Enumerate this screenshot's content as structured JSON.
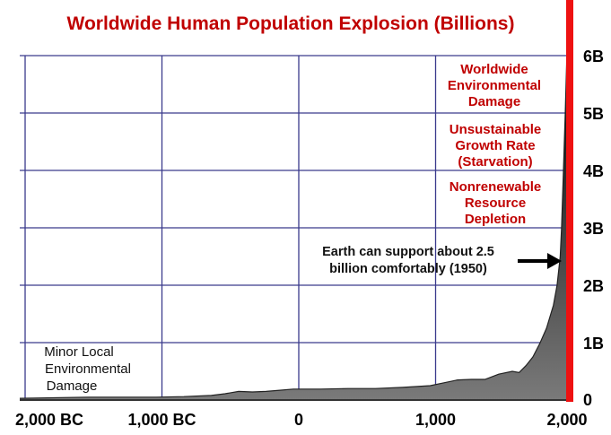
{
  "chart_data": {
    "type": "area",
    "title": "Worldwide Human Population Explosion (Billions)",
    "x_ticks": [
      {
        "value": -2000,
        "label": "2,000 BC"
      },
      {
        "value": -1000,
        "label": "1,000 BC"
      },
      {
        "value": 0,
        "label": "0"
      },
      {
        "value": 1000,
        "label": "1,000"
      },
      {
        "value": 2000,
        "label": "2,000"
      }
    ],
    "y_ticks": [
      {
        "value": 0,
        "label": "0"
      },
      {
        "value": 1,
        "label": "1B"
      },
      {
        "value": 2,
        "label": "2B"
      },
      {
        "value": 3,
        "label": "3B"
      },
      {
        "value": 4,
        "label": "4B"
      },
      {
        "value": 5,
        "label": "5B"
      },
      {
        "value": 6,
        "label": "6B"
      }
    ],
    "xlim": [
      -2000,
      2000
    ],
    "ylim": [
      0,
      6
    ],
    "grid": true,
    "x": [
      -2000,
      -1500,
      -1000,
      -800,
      -600,
      -500,
      -400,
      -300,
      -200,
      -100,
      0,
      200,
      400,
      600,
      800,
      1000,
      1100,
      1200,
      1300,
      1400,
      1500,
      1600,
      1650,
      1700,
      1750,
      1800,
      1850,
      1900,
      1927,
      1950,
      1960,
      1974,
      1987,
      1999,
      2000
    ],
    "y": [
      0.03,
      0.05,
      0.05,
      0.06,
      0.08,
      0.11,
      0.15,
      0.14,
      0.15,
      0.17,
      0.19,
      0.19,
      0.2,
      0.2,
      0.22,
      0.25,
      0.3,
      0.35,
      0.36,
      0.36,
      0.45,
      0.5,
      0.48,
      0.6,
      0.75,
      0.98,
      1.25,
      1.65,
      2.0,
      2.5,
      3.0,
      4.0,
      5.0,
      6.0,
      6.1
    ],
    "annotations": {
      "environmental_damage": [
        "Worldwide",
        "Environmental",
        "Damage"
      ],
      "growth_rate": [
        "Unsustainable",
        "Growth Rate",
        "(Starvation)"
      ],
      "resource_depletion": [
        "Nonrenewable",
        "Resource",
        "Depletion"
      ],
      "carrying_capacity": [
        "Earth can support about 2.5",
        "billion comfortably (1950)"
      ],
      "minor_damage": [
        "Minor Local",
        "Environmental",
        "Damage"
      ]
    },
    "colors": {
      "title": "#c00000",
      "grid": "#3a3a8c",
      "fill_top": "#000000",
      "fill_bottom": "#7a7a7a",
      "red_bar": "#ee1111",
      "annotation_red": "#c00000"
    }
  }
}
